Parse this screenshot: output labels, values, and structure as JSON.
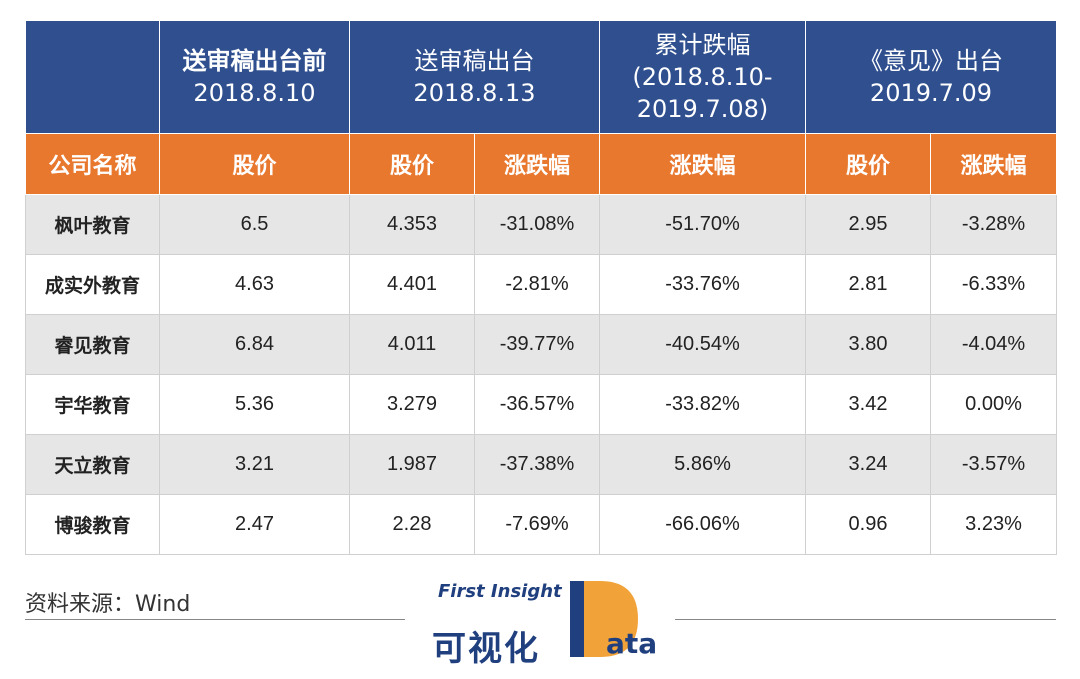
{
  "header": {
    "groups": [
      {
        "lines": [
          "送审稿出台前",
          "2018.8.10"
        ]
      },
      {
        "lines": [
          "送审稿出台",
          "2018.8.13"
        ]
      },
      {
        "lines": [
          "累计跌幅",
          "(2018.8.10-",
          "2019.7.08)"
        ]
      },
      {
        "lines": [
          "《意见》出台",
          "2019.7.09"
        ]
      }
    ],
    "columns": [
      "公司名称",
      "股价",
      "股价",
      "涨跌幅",
      "涨跌幅",
      "股价",
      "涨跌幅"
    ]
  },
  "rows": [
    {
      "name": "枫叶教育",
      "p1": "6.5",
      "p2": "4.353",
      "c2": "-31.08%",
      "cum": "-51.70%",
      "p3": "2.95",
      "c3": "-3.28%"
    },
    {
      "name": "成实外教育",
      "p1": "4.63",
      "p2": "4.401",
      "c2": "-2.81%",
      "cum": "-33.76%",
      "p3": "2.81",
      "c3": "-6.33%"
    },
    {
      "name": "睿见教育",
      "p1": "6.84",
      "p2": "4.011",
      "c2": "-39.77%",
      "cum": "-40.54%",
      "p3": "3.80",
      "c3": "-4.04%"
    },
    {
      "name": "宇华教育",
      "p1": "5.36",
      "p2": "3.279",
      "c2": "-36.57%",
      "cum": "-33.82%",
      "p3": "3.42",
      "c3": "0.00%"
    },
    {
      "name": "天立教育",
      "p1": "3.21",
      "p2": "1.987",
      "c2": "-37.38%",
      "cum": "5.86%",
      "p3": "3.24",
      "c3": "-3.57%"
    },
    {
      "name": "博骏教育",
      "p1": "2.47",
      "p2": "2.28",
      "c2": "-7.69%",
      "cum": "-66.06%",
      "p3": "0.96",
      "c3": "3.23%"
    }
  ],
  "footer": {
    "source": "资料来源：Wind",
    "logo_en": "First Insight",
    "logo_cn": "可视化",
    "logo_data": "ata"
  },
  "colors": {
    "header_blue": "#2f4f8f",
    "header_orange": "#e9782f",
    "row_gray": "#e6e6e6"
  }
}
